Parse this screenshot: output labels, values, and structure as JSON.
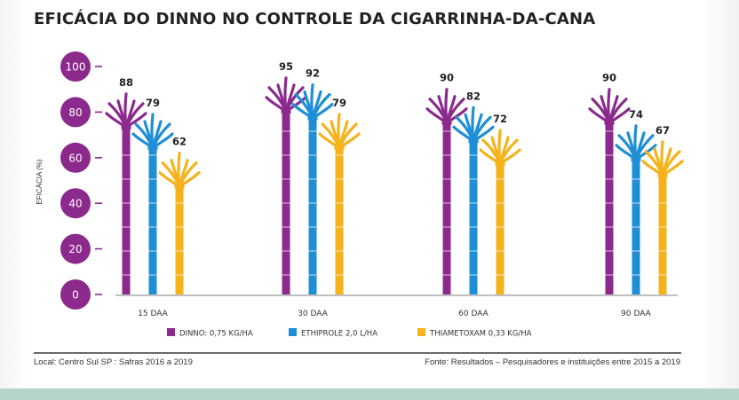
{
  "title": "EFICÁCIA DO DINNO NO CONTROLE DA CIGARRINHA-DA-CANA",
  "colors": {
    "dinno": "#8b2a8c",
    "ethiprole": "#1e8fd6",
    "thiametoxam": "#f5b21b",
    "axis_circle": "#8b2a8c",
    "baseline": "#9a9a9a",
    "text": "#222222",
    "bottom_band": "#b6d5c9"
  },
  "chart_data": {
    "type": "bar",
    "title": "EFICÁCIA DO DINNO NO CONTROLE DA CIGARRINHA-DA-CANA",
    "xlabel": "",
    "ylabel": "EFICÁCIA (%)",
    "ylim": [
      0,
      100
    ],
    "yticks": [
      0,
      20,
      40,
      60,
      80,
      100
    ],
    "categories": [
      "15 DAA",
      "30 DAA",
      "60 DAA",
      "90 DAA"
    ],
    "series": [
      {
        "name": "DINNO: 0,75 KG/HA",
        "key": "dinno",
        "values": [
          88,
          95,
          90,
          90
        ]
      },
      {
        "name": "ETHIPROLE 2,0 L/HA",
        "key": "ethiprole",
        "values": [
          79,
          92,
          82,
          74
        ]
      },
      {
        "name": "THIAMETOXAM 0,33 KG/HA",
        "key": "thiametoxam",
        "values": [
          62,
          79,
          72,
          67
        ]
      }
    ],
    "legend_position": "bottom-center",
    "grid": false,
    "mark_style": "sugarcane-stalk"
  },
  "footer": {
    "left": "Local: Centro Sul SP : Safras 2016 a 2019",
    "right": "Fonte: Resultados – Pesquisadores e instituições entre 2015 a 2019"
  }
}
